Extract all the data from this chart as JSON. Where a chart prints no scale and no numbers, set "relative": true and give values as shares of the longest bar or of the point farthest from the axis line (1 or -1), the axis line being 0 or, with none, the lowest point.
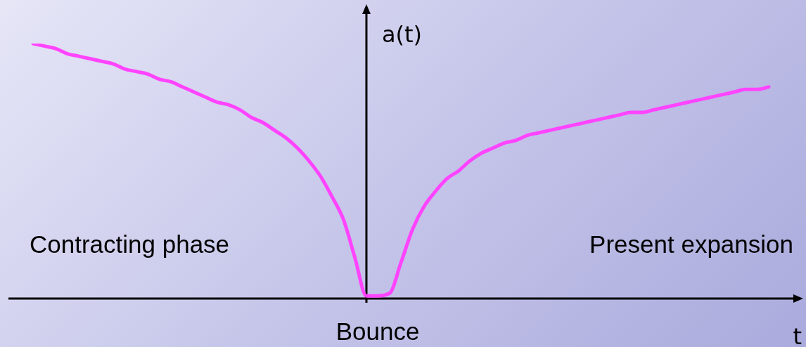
{
  "chart_data": {
    "type": "line",
    "relative": true,
    "xlabel": "t",
    "ylabel": "a(t)",
    "grid": false,
    "legend": false,
    "marker": "none",
    "line_style": "solid",
    "categories": [
      null,
      null,
      null,
      null,
      null,
      null,
      null,
      null,
      null,
      null,
      null,
      null,
      null,
      null,
      null,
      null,
      null,
      null,
      null,
      null,
      null,
      null,
      null,
      null,
      null,
      null,
      null,
      null,
      null,
      null,
      null,
      null,
      null,
      null,
      null,
      null,
      null,
      null,
      null,
      null,
      null,
      null,
      null,
      null,
      null,
      null,
      null,
      null,
      null,
      null,
      null,
      null,
      null,
      null,
      null,
      null,
      null,
      null,
      null,
      null,
      null,
      null,
      null,
      null,
      null
    ],
    "series": [
      {
        "color": "#ff44ff",
        "values": [
          1.0,
          0.99,
          0.98,
          0.96,
          0.95,
          0.94,
          0.93,
          0.92,
          0.9,
          0.89,
          0.88,
          0.86,
          0.85,
          0.83,
          0.81,
          0.79,
          0.77,
          0.76,
          0.74,
          0.71,
          0.69,
          0.66,
          0.63,
          0.59,
          0.54,
          0.48,
          0.4,
          0.31,
          0.16,
          0.01,
          0.01,
          0.02,
          0.14,
          0.27,
          0.36,
          0.42,
          0.47,
          0.5,
          0.54,
          0.57,
          0.59,
          0.61,
          0.62,
          0.64,
          0.65,
          0.66,
          0.67,
          0.68,
          0.69,
          0.7,
          0.71,
          0.72,
          0.73,
          0.73,
          0.74,
          0.75,
          0.76,
          0.77,
          0.78,
          0.79,
          0.8,
          0.81,
          0.82,
          0.82,
          0.83
        ]
      }
    ],
    "annotations": [
      "Contracting phase",
      "Present expansion",
      "Bounce"
    ]
  }
}
